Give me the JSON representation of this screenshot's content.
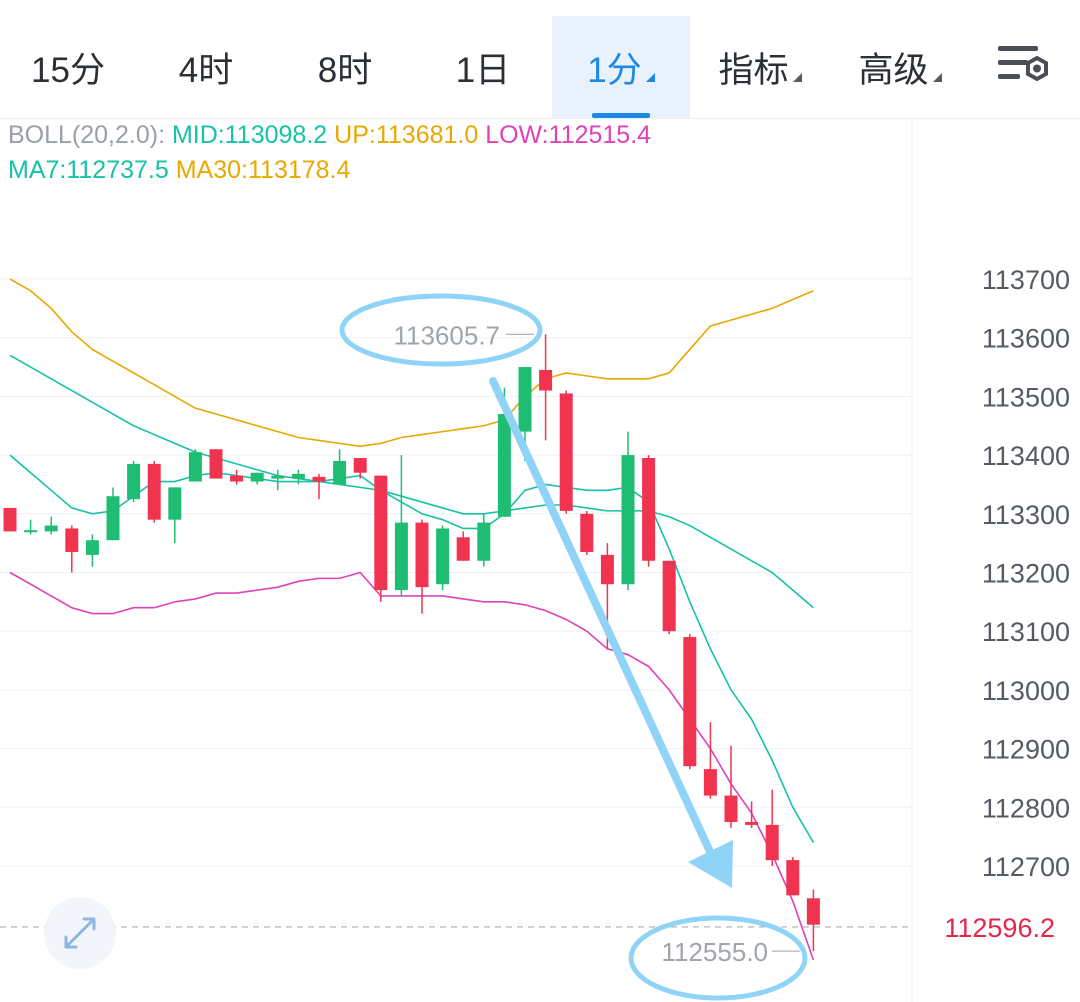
{
  "tabs": [
    {
      "label": "15分",
      "active": false,
      "dropdown": false
    },
    {
      "label": "4时",
      "active": false,
      "dropdown": false
    },
    {
      "label": "8时",
      "active": false,
      "dropdown": false
    },
    {
      "label": "1日",
      "active": false,
      "dropdown": false
    },
    {
      "label": "1分",
      "active": true,
      "dropdown": true
    },
    {
      "label": "指标",
      "active": false,
      "dropdown": true
    },
    {
      "label": "高级",
      "active": false,
      "dropdown": true
    }
  ],
  "settings_icon": "chart-settings-icon",
  "legend": {
    "boll_label": "BOLL(20,2.0):",
    "mid": "MID:113098.2",
    "up": "UP:113681.0",
    "low": "LOW:112515.4",
    "ma7": "MA7:112737.5",
    "ma30": "MA30:113178.4"
  },
  "colors": {
    "accent": "#1e88e5",
    "up_candle": "#1ebd73",
    "down_candle": "#f0334f",
    "boll_mid": "#16c2a5",
    "boll_up": "#e8a800",
    "boll_low": "#e040b8",
    "ma7": "#16c2a5",
    "ma30": "#e8a800",
    "annotation": "#8fd3f6",
    "price_tag": "#e5254b"
  },
  "chart_data": {
    "type": "candlestick",
    "y_ticks": [
      113700,
      113600,
      113500,
      113400,
      113300,
      113200,
      113100,
      113000,
      112900,
      112800,
      112700
    ],
    "ylim": [
      112530,
      113790
    ],
    "current_price": "112596.2",
    "max_label": "113605.7",
    "min_label": "112555.0",
    "candles": [
      {
        "o": 113310,
        "h": 113310,
        "l": 113270,
        "c": 113270
      },
      {
        "o": 113270,
        "h": 113290,
        "l": 113265,
        "c": 113272
      },
      {
        "o": 113270,
        "h": 113295,
        "l": 113265,
        "c": 113280
      },
      {
        "o": 113275,
        "h": 113280,
        "l": 113200,
        "c": 113235
      },
      {
        "o": 113230,
        "h": 113265,
        "l": 113210,
        "c": 113255
      },
      {
        "o": 113255,
        "h": 113345,
        "l": 113255,
        "c": 113330
      },
      {
        "o": 113325,
        "h": 113390,
        "l": 113320,
        "c": 113385
      },
      {
        "o": 113385,
        "h": 113390,
        "l": 113285,
        "c": 113290
      },
      {
        "o": 113290,
        "h": 113345,
        "l": 113250,
        "c": 113345
      },
      {
        "o": 113355,
        "h": 113410,
        "l": 113355,
        "c": 113405
      },
      {
        "o": 113410,
        "h": 113410,
        "l": 113360,
        "c": 113360
      },
      {
        "o": 113365,
        "h": 113375,
        "l": 113350,
        "c": 113355
      },
      {
        "o": 113355,
        "h": 113370,
        "l": 113350,
        "c": 113370
      },
      {
        "o": 113360,
        "h": 113375,
        "l": 113340,
        "c": 113365
      },
      {
        "o": 113360,
        "h": 113375,
        "l": 113350,
        "c": 113368
      },
      {
        "o": 113363,
        "h": 113368,
        "l": 113325,
        "c": 113355
      },
      {
        "o": 113350,
        "h": 113410,
        "l": 113350,
        "c": 113390
      },
      {
        "o": 113395,
        "h": 113395,
        "l": 113360,
        "c": 113370
      },
      {
        "o": 113365,
        "h": 113365,
        "l": 113150,
        "c": 113170
      },
      {
        "o": 113170,
        "h": 113400,
        "l": 113160,
        "c": 113285
      },
      {
        "o": 113285,
        "h": 113290,
        "l": 113130,
        "c": 113175
      },
      {
        "o": 113180,
        "h": 113280,
        "l": 113170,
        "c": 113275
      },
      {
        "o": 113260,
        "h": 113270,
        "l": 113220,
        "c": 113220
      },
      {
        "o": 113220,
        "h": 113300,
        "l": 113210,
        "c": 113285
      },
      {
        "o": 113295,
        "h": 113515,
        "l": 113295,
        "c": 113470
      },
      {
        "o": 113440,
        "h": 113540,
        "l": 113390,
        "c": 113550
      },
      {
        "o": 113545,
        "h": 113605.7,
        "l": 113425,
        "c": 113510
      },
      {
        "o": 113505,
        "h": 113510,
        "l": 113300,
        "c": 113305
      },
      {
        "o": 113300,
        "h": 113305,
        "l": 113230,
        "c": 113235
      },
      {
        "o": 113230,
        "h": 113250,
        "l": 113070,
        "c": 113180
      },
      {
        "o": 113180,
        "h": 113440,
        "l": 113170,
        "c": 113400
      },
      {
        "o": 113395,
        "h": 113400,
        "l": 113210,
        "c": 113220
      },
      {
        "o": 113220,
        "h": 113220,
        "l": 113095,
        "c": 113100
      },
      {
        "o": 113090,
        "h": 113095,
        "l": 112865,
        "c": 112870
      },
      {
        "o": 112865,
        "h": 112945,
        "l": 112815,
        "c": 112820
      },
      {
        "o": 112820,
        "h": 112905,
        "l": 112765,
        "c": 112775
      },
      {
        "o": 112775,
        "h": 112810,
        "l": 112765,
        "c": 112770
      },
      {
        "o": 112770,
        "h": 112830,
        "l": 112700,
        "c": 112710
      },
      {
        "o": 112710,
        "h": 112715,
        "l": 112655,
        "c": 112650
      },
      {
        "o": 112645,
        "h": 112660,
        "l": 112555,
        "c": 112600
      }
    ],
    "boll_up": [
      [
        0,
        113700
      ],
      [
        1,
        113680
      ],
      [
        2,
        113650
      ],
      [
        3,
        113610
      ],
      [
        4,
        113580
      ],
      [
        5,
        113560
      ],
      [
        6,
        113540
      ],
      [
        7,
        113520
      ],
      [
        8,
        113500
      ],
      [
        9,
        113480
      ],
      [
        10,
        113470
      ],
      [
        11,
        113460
      ],
      [
        12,
        113450
      ],
      [
        13,
        113440
      ],
      [
        14,
        113430
      ],
      [
        15,
        113425
      ],
      [
        16,
        113420
      ],
      [
        17,
        113415
      ],
      [
        18,
        113420
      ],
      [
        19,
        113430
      ],
      [
        20,
        113435
      ],
      [
        21,
        113440
      ],
      [
        22,
        113445
      ],
      [
        23,
        113450
      ],
      [
        24,
        113460
      ],
      [
        25,
        113500
      ],
      [
        26,
        113530
      ],
      [
        27,
        113540
      ],
      [
        28,
        113535
      ],
      [
        29,
        113530
      ],
      [
        30,
        113530
      ],
      [
        31,
        113530
      ],
      [
        32,
        113540
      ],
      [
        33,
        113580
      ],
      [
        34,
        113620
      ],
      [
        35,
        113630
      ],
      [
        36,
        113640
      ],
      [
        37,
        113650
      ],
      [
        38,
        113665
      ],
      [
        39,
        113680
      ]
    ],
    "boll_mid": [
      [
        0,
        113570
      ],
      [
        1,
        113550
      ],
      [
        2,
        113530
      ],
      [
        3,
        113510
      ],
      [
        4,
        113490
      ],
      [
        5,
        113470
      ],
      [
        6,
        113450
      ],
      [
        7,
        113435
      ],
      [
        8,
        113420
      ],
      [
        9,
        113405
      ],
      [
        10,
        113395
      ],
      [
        11,
        113385
      ],
      [
        12,
        113375
      ],
      [
        13,
        113365
      ],
      [
        14,
        113360
      ],
      [
        15,
        113355
      ],
      [
        16,
        113350
      ],
      [
        17,
        113345
      ],
      [
        18,
        113340
      ],
      [
        19,
        113330
      ],
      [
        20,
        113320
      ],
      [
        21,
        113310
      ],
      [
        22,
        113300
      ],
      [
        23,
        113300
      ],
      [
        24,
        113305
      ],
      [
        25,
        113310
      ],
      [
        26,
        113315
      ],
      [
        27,
        113315
      ],
      [
        28,
        113310
      ],
      [
        29,
        113305
      ],
      [
        30,
        113305
      ],
      [
        31,
        113305
      ],
      [
        32,
        113295
      ],
      [
        33,
        113280
      ],
      [
        34,
        113260
      ],
      [
        35,
        113240
      ],
      [
        36,
        113220
      ],
      [
        37,
        113200
      ],
      [
        38,
        113170
      ],
      [
        39,
        113140
      ]
    ],
    "boll_low": [
      [
        0,
        113200
      ],
      [
        1,
        113180
      ],
      [
        2,
        113160
      ],
      [
        3,
        113140
      ],
      [
        4,
        113130
      ],
      [
        5,
        113130
      ],
      [
        6,
        113140
      ],
      [
        7,
        113140
      ],
      [
        8,
        113150
      ],
      [
        9,
        113155
      ],
      [
        10,
        113165
      ],
      [
        11,
        113165
      ],
      [
        12,
        113170
      ],
      [
        13,
        113175
      ],
      [
        14,
        113185
      ],
      [
        15,
        113190
      ],
      [
        16,
        113190
      ],
      [
        17,
        113200
      ],
      [
        18,
        113160
      ],
      [
        19,
        113160
      ],
      [
        20,
        113160
      ],
      [
        21,
        113160
      ],
      [
        22,
        113155
      ],
      [
        23,
        113150
      ],
      [
        24,
        113150
      ],
      [
        25,
        113145
      ],
      [
        26,
        113135
      ],
      [
        27,
        113120
      ],
      [
        28,
        113100
      ],
      [
        29,
        113070
      ],
      [
        30,
        113060
      ],
      [
        31,
        113040
      ],
      [
        32,
        113000
      ],
      [
        33,
        112950
      ],
      [
        34,
        112900
      ],
      [
        35,
        112840
      ],
      [
        36,
        112790
      ],
      [
        37,
        112720
      ],
      [
        38,
        112640
      ],
      [
        39,
        112540
      ]
    ],
    "ma7": [
      [
        0,
        113400
      ],
      [
        1,
        113370
      ],
      [
        2,
        113340
      ],
      [
        3,
        113310
      ],
      [
        4,
        113300
      ],
      [
        5,
        113305
      ],
      [
        6,
        113330
      ],
      [
        7,
        113355
      ],
      [
        8,
        113355
      ],
      [
        9,
        113365
      ],
      [
        10,
        113370
      ],
      [
        11,
        113365
      ],
      [
        12,
        113360
      ],
      [
        13,
        113355
      ],
      [
        14,
        113355
      ],
      [
        15,
        113355
      ],
      [
        16,
        113360
      ],
      [
        17,
        113365
      ],
      [
        18,
        113340
      ],
      [
        19,
        113320
      ],
      [
        20,
        113300
      ],
      [
        21,
        113290
      ],
      [
        22,
        113275
      ],
      [
        23,
        113275
      ],
      [
        24,
        113300
      ],
      [
        25,
        113340
      ],
      [
        26,
        113350
      ],
      [
        27,
        113345
      ],
      [
        28,
        113340
      ],
      [
        29,
        113340
      ],
      [
        30,
        113345
      ],
      [
        31,
        113320
      ],
      [
        32,
        113240
      ],
      [
        33,
        113150
      ],
      [
        34,
        113070
      ],
      [
        35,
        113000
      ],
      [
        36,
        112950
      ],
      [
        37,
        112880
      ],
      [
        38,
        112800
      ],
      [
        39,
        112740
      ]
    ]
  }
}
